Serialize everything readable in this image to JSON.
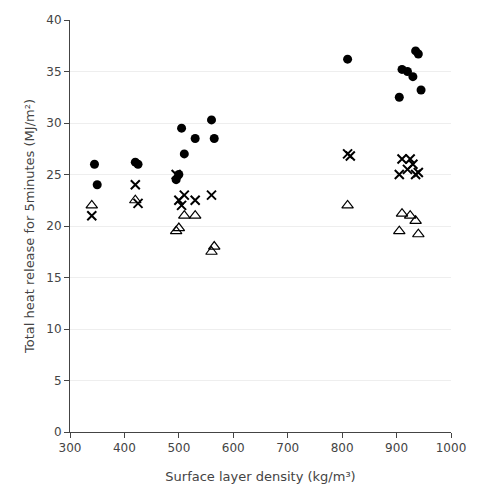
{
  "chart_data": {
    "type": "scatter",
    "xlabel": "Surface layer density (kg/m³)",
    "ylabel": "Total heat release for 5minutes (MJ/m²)",
    "xlim": [
      300,
      1000
    ],
    "ylim": [
      0,
      40
    ],
    "xticks": [
      300,
      400,
      500,
      600,
      700,
      800,
      900,
      1000
    ],
    "yticks": [
      0,
      5,
      10,
      15,
      20,
      25,
      30,
      35,
      40
    ],
    "grid": "y",
    "series": [
      {
        "color": "#000000",
        "marker": "circle",
        "x": [
          345,
          350,
          420,
          425,
          495,
          500,
          505,
          510,
          530,
          560,
          565,
          810,
          905,
          910,
          920,
          930,
          935,
          940,
          945
        ],
        "values": [
          26,
          24,
          26.2,
          26,
          24.5,
          25,
          29.5,
          27,
          28.5,
          30.3,
          28.5,
          36.2,
          32.5,
          35.2,
          35,
          34.5,
          37,
          36.7,
          33.2
        ]
      },
      {
        "color": "#000000",
        "marker": "x",
        "x": [
          340,
          420,
          425,
          495,
          500,
          505,
          510,
          530,
          560,
          810,
          815,
          905,
          910,
          920,
          925,
          930,
          935,
          940
        ],
        "values": [
          21,
          24,
          22.2,
          25,
          22.5,
          22,
          23,
          22.5,
          23,
          27,
          26.8,
          25,
          26.5,
          25.5,
          26.5,
          26,
          25,
          25.2
        ]
      },
      {
        "color": "#000000",
        "marker": "triangle-open",
        "x": [
          340,
          420,
          495,
          500,
          510,
          530,
          560,
          565,
          810,
          905,
          910,
          925,
          935,
          940
        ],
        "values": [
          22,
          22.5,
          19.5,
          19.8,
          21,
          21,
          17.5,
          18,
          22,
          19.5,
          21.2,
          21,
          20.5,
          19.2
        ]
      }
    ]
  }
}
